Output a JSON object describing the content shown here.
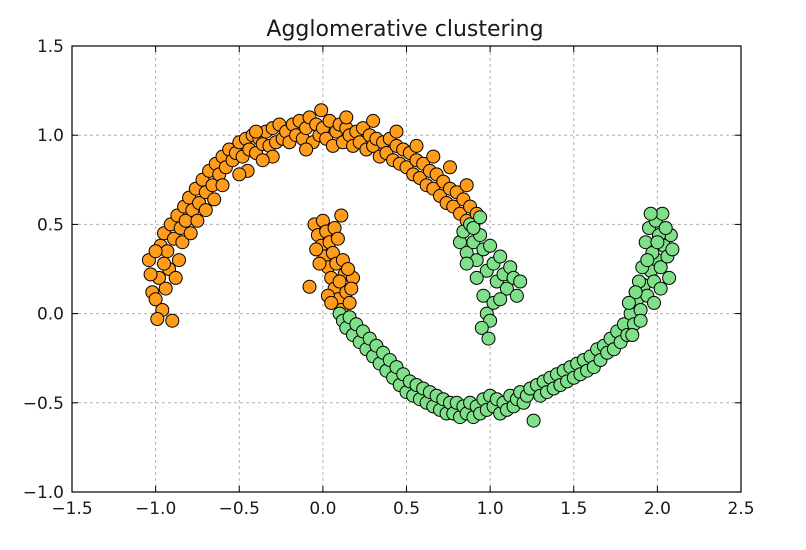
{
  "chart_data": {
    "type": "scatter",
    "title": "Agglomerative clustering",
    "xlabel": "",
    "ylabel": "",
    "xlim": [
      -1.5,
      2.5
    ],
    "ylim": [
      -1.0,
      1.5
    ],
    "xticks": [
      -1.5,
      -1.0,
      -0.5,
      0.0,
      0.5,
      1.0,
      1.5,
      2.0,
      2.5
    ],
    "xtick_labels": [
      "−1.5",
      "−1.0",
      "−0.5",
      "0.0",
      "0.5",
      "1.0",
      "1.5",
      "2.0",
      "2.5"
    ],
    "yticks": [
      -1.0,
      -0.5,
      0.0,
      0.5,
      1.0,
      1.5
    ],
    "ytick_labels": [
      "−1.0",
      "−0.5",
      "0.0",
      "0.5",
      "1.0",
      "1.5"
    ],
    "grid": true,
    "legend": "none",
    "series": [
      {
        "color": "#ff9c1c",
        "points": [
          [
            -1.02,
            0.12
          ],
          [
            -1.0,
            0.08
          ],
          [
            -0.98,
            0.2
          ],
          [
            -1.04,
            0.3
          ],
          [
            -0.96,
            0.02
          ],
          [
            -0.94,
            0.14
          ],
          [
            -0.99,
            -0.03
          ],
          [
            -0.92,
            0.25
          ],
          [
            -0.9,
            -0.04
          ],
          [
            -1.03,
            0.22
          ],
          [
            -0.97,
            0.38
          ],
          [
            -0.95,
            0.45
          ],
          [
            -0.93,
            0.35
          ],
          [
            -0.91,
            0.5
          ],
          [
            -0.89,
            0.42
          ],
          [
            -0.87,
            0.55
          ],
          [
            -0.85,
            0.48
          ],
          [
            -0.83,
            0.6
          ],
          [
            -0.86,
            0.3
          ],
          [
            -0.88,
            0.2
          ],
          [
            -0.84,
            0.4
          ],
          [
            -0.82,
            0.52
          ],
          [
            -0.8,
            0.65
          ],
          [
            -0.78,
            0.58
          ],
          [
            -0.76,
            0.7
          ],
          [
            -0.74,
            0.62
          ],
          [
            -0.72,
            0.75
          ],
          [
            -0.7,
            0.68
          ],
          [
            -0.75,
            0.52
          ],
          [
            -0.79,
            0.45
          ],
          [
            -0.68,
            0.8
          ],
          [
            -0.66,
            0.72
          ],
          [
            -0.64,
            0.84
          ],
          [
            -0.62,
            0.78
          ],
          [
            -0.6,
            0.88
          ],
          [
            -0.58,
            0.82
          ],
          [
            -0.56,
            0.92
          ],
          [
            -0.54,
            0.86
          ],
          [
            -0.6,
            0.72
          ],
          [
            -0.65,
            0.64
          ],
          [
            -0.52,
            0.9
          ],
          [
            -0.5,
            0.96
          ],
          [
            -0.48,
            0.88
          ],
          [
            -0.46,
            0.98
          ],
          [
            -0.44,
            0.92
          ],
          [
            -0.42,
            1.0
          ],
          [
            -0.4,
            0.9
          ],
          [
            -0.38,
            0.98
          ],
          [
            -0.45,
            0.8
          ],
          [
            -0.5,
            0.78
          ],
          [
            -0.36,
            0.95
          ],
          [
            -0.34,
            1.02
          ],
          [
            -0.32,
            0.94
          ],
          [
            -0.3,
            1.04
          ],
          [
            -0.28,
            0.96
          ],
          [
            -0.26,
            1.06
          ],
          [
            -0.24,
            0.98
          ],
          [
            -0.22,
            1.02
          ],
          [
            -0.3,
            0.88
          ],
          [
            -0.36,
            0.86
          ],
          [
            -0.2,
            0.96
          ],
          [
            -0.18,
            1.06
          ],
          [
            -0.16,
            1.0
          ],
          [
            -0.14,
            1.08
          ],
          [
            -0.12,
            0.98
          ],
          [
            -0.1,
            1.04
          ],
          [
            -0.08,
            1.1
          ],
          [
            -0.06,
            0.96
          ],
          [
            -0.04,
            1.06
          ],
          [
            -0.02,
            1.0
          ],
          [
            -0.01,
            1.14
          ],
          [
            0.0,
            1.04
          ],
          [
            0.02,
            0.98
          ],
          [
            0.04,
            1.08
          ],
          [
            0.06,
            0.94
          ],
          [
            0.08,
            1.02
          ],
          [
            0.1,
            1.06
          ],
          [
            0.12,
            0.96
          ],
          [
            0.14,
            1.04
          ],
          [
            0.16,
            1.0
          ],
          [
            0.18,
            0.94
          ],
          [
            0.2,
            1.02
          ],
          [
            0.22,
            0.96
          ],
          [
            0.24,
            1.04
          ],
          [
            0.26,
            0.92
          ],
          [
            0.28,
            1.0
          ],
          [
            0.3,
            0.94
          ],
          [
            0.32,
            0.98
          ],
          [
            0.34,
            0.88
          ],
          [
            0.36,
            0.96
          ],
          [
            0.38,
            0.9
          ],
          [
            0.4,
            0.98
          ],
          [
            0.42,
            0.86
          ],
          [
            0.44,
            0.94
          ],
          [
            0.46,
            0.84
          ],
          [
            0.48,
            0.92
          ],
          [
            0.5,
            0.82
          ],
          [
            0.52,
            0.9
          ],
          [
            0.54,
            0.78
          ],
          [
            0.56,
            0.86
          ],
          [
            0.58,
            0.76
          ],
          [
            0.6,
            0.84
          ],
          [
            0.62,
            0.72
          ],
          [
            0.64,
            0.8
          ],
          [
            0.66,
            0.7
          ],
          [
            0.68,
            0.78
          ],
          [
            0.7,
            0.66
          ],
          [
            0.72,
            0.74
          ],
          [
            0.74,
            0.62
          ],
          [
            0.76,
            0.7
          ],
          [
            0.78,
            0.6
          ],
          [
            0.8,
            0.68
          ],
          [
            0.82,
            0.56
          ],
          [
            0.84,
            0.64
          ],
          [
            0.86,
            0.52
          ],
          [
            0.88,
            0.6
          ],
          [
            0.9,
            0.5
          ],
          [
            0.92,
            0.56
          ],
          [
            0.86,
            0.72
          ],
          [
            0.76,
            0.82
          ],
          [
            0.66,
            0.88
          ],
          [
            0.56,
            0.94
          ],
          [
            0.44,
            1.02
          ],
          [
            0.3,
            1.08
          ],
          [
            0.14,
            1.1
          ],
          [
            -0.1,
            0.92
          ],
          [
            -0.4,
            1.02
          ],
          [
            -0.7,
            0.58
          ],
          [
            -0.95,
            0.28
          ],
          [
            -1.0,
            0.35
          ],
          [
            -0.05,
            0.5
          ],
          [
            -0.03,
            0.44
          ],
          [
            -0.01,
            0.38
          ],
          [
            0.01,
            0.32
          ],
          [
            0.03,
            0.26
          ],
          [
            0.05,
            0.2
          ],
          [
            0.07,
            0.14
          ],
          [
            0.09,
            0.08
          ],
          [
            0.11,
            0.02
          ],
          [
            0.13,
            0.22
          ],
          [
            0.0,
            0.52
          ],
          [
            0.02,
            0.46
          ],
          [
            0.04,
            0.4
          ],
          [
            0.06,
            0.34
          ],
          [
            0.08,
            0.28
          ],
          [
            0.1,
            0.18
          ],
          [
            0.12,
            0.3
          ],
          [
            0.14,
            0.12
          ],
          [
            0.16,
            0.06
          ],
          [
            0.18,
            0.2
          ],
          [
            0.11,
            0.55
          ],
          [
            0.07,
            0.48
          ],
          [
            -0.02,
            0.28
          ],
          [
            -0.08,
            0.15
          ],
          [
            0.15,
            0.25
          ],
          [
            0.09,
            0.42
          ],
          [
            -0.04,
            0.36
          ],
          [
            0.03,
            0.1
          ],
          [
            0.17,
            0.14
          ],
          [
            0.05,
            0.06
          ]
        ]
      },
      {
        "color": "#7fe08a",
        "points": [
          [
            0.1,
            0.0
          ],
          [
            0.12,
            -0.04
          ],
          [
            0.14,
            -0.08
          ],
          [
            0.16,
            -0.02
          ],
          [
            0.18,
            -0.12
          ],
          [
            0.2,
            -0.06
          ],
          [
            0.22,
            -0.16
          ],
          [
            0.24,
            -0.1
          ],
          [
            0.26,
            -0.2
          ],
          [
            0.28,
            -0.14
          ],
          [
            0.3,
            -0.24
          ],
          [
            0.32,
            -0.18
          ],
          [
            0.34,
            -0.28
          ],
          [
            0.36,
            -0.22
          ],
          [
            0.38,
            -0.32
          ],
          [
            0.4,
            -0.26
          ],
          [
            0.42,
            -0.36
          ],
          [
            0.44,
            -0.3
          ],
          [
            0.46,
            -0.4
          ],
          [
            0.48,
            -0.34
          ],
          [
            0.5,
            -0.44
          ],
          [
            0.52,
            -0.38
          ],
          [
            0.54,
            -0.46
          ],
          [
            0.56,
            -0.4
          ],
          [
            0.58,
            -0.48
          ],
          [
            0.6,
            -0.42
          ],
          [
            0.62,
            -0.5
          ],
          [
            0.64,
            -0.44
          ],
          [
            0.66,
            -0.52
          ],
          [
            0.68,
            -0.46
          ],
          [
            0.7,
            -0.54
          ],
          [
            0.72,
            -0.48
          ],
          [
            0.74,
            -0.56
          ],
          [
            0.76,
            -0.5
          ],
          [
            0.78,
            -0.56
          ],
          [
            0.8,
            -0.5
          ],
          [
            0.82,
            -0.58
          ],
          [
            0.84,
            -0.52
          ],
          [
            0.86,
            -0.56
          ],
          [
            0.88,
            -0.5
          ],
          [
            0.9,
            -0.58
          ],
          [
            0.92,
            -0.52
          ],
          [
            0.94,
            -0.56
          ],
          [
            0.96,
            -0.48
          ],
          [
            0.98,
            -0.54
          ],
          [
            1.0,
            -0.46
          ],
          [
            1.02,
            -0.52
          ],
          [
            1.04,
            -0.48
          ],
          [
            1.06,
            -0.56
          ],
          [
            1.08,
            -0.5
          ],
          [
            1.1,
            -0.54
          ],
          [
            1.12,
            -0.46
          ],
          [
            1.14,
            -0.52
          ],
          [
            1.16,
            -0.48
          ],
          [
            1.18,
            -0.44
          ],
          [
            1.2,
            -0.5
          ],
          [
            1.22,
            -0.46
          ],
          [
            1.24,
            -0.42
          ],
          [
            1.26,
            -0.6
          ],
          [
            1.28,
            -0.4
          ],
          [
            1.3,
            -0.46
          ],
          [
            1.32,
            -0.38
          ],
          [
            1.34,
            -0.44
          ],
          [
            1.36,
            -0.36
          ],
          [
            1.38,
            -0.42
          ],
          [
            1.4,
            -0.34
          ],
          [
            1.42,
            -0.4
          ],
          [
            1.44,
            -0.32
          ],
          [
            1.46,
            -0.38
          ],
          [
            1.48,
            -0.3
          ],
          [
            1.5,
            -0.36
          ],
          [
            1.52,
            -0.28
          ],
          [
            1.54,
            -0.34
          ],
          [
            1.56,
            -0.26
          ],
          [
            1.58,
            -0.32
          ],
          [
            1.6,
            -0.24
          ],
          [
            1.62,
            -0.3
          ],
          [
            1.64,
            -0.2
          ],
          [
            1.66,
            -0.26
          ],
          [
            1.68,
            -0.18
          ],
          [
            1.7,
            -0.22
          ],
          [
            1.72,
            -0.14
          ],
          [
            1.74,
            -0.2
          ],
          [
            1.76,
            -0.1
          ],
          [
            1.78,
            -0.16
          ],
          [
            1.8,
            -0.06
          ],
          [
            1.82,
            -0.12
          ],
          [
            1.84,
            0.0
          ],
          [
            1.86,
            -0.06
          ],
          [
            1.88,
            0.08
          ],
          [
            1.9,
            0.02
          ],
          [
            1.92,
            0.16
          ],
          [
            1.94,
            0.1
          ],
          [
            1.96,
            0.24
          ],
          [
            1.98,
            0.18
          ],
          [
            2.0,
            0.3
          ],
          [
            2.02,
            0.26
          ],
          [
            2.04,
            0.38
          ],
          [
            2.06,
            0.32
          ],
          [
            2.08,
            0.44
          ],
          [
            1.93,
            0.4
          ],
          [
            1.95,
            0.48
          ],
          [
            1.97,
            0.34
          ],
          [
            1.99,
            0.52
          ],
          [
            2.01,
            0.44
          ],
          [
            2.03,
            0.56
          ],
          [
            2.05,
            0.48
          ],
          [
            2.07,
            0.2
          ],
          [
            2.09,
            0.36
          ],
          [
            1.91,
            0.26
          ],
          [
            1.89,
            0.18
          ],
          [
            1.87,
            0.12
          ],
          [
            1.85,
            -0.12
          ],
          [
            1.83,
            0.06
          ],
          [
            1.96,
            0.56
          ],
          [
            2.0,
            0.4
          ],
          [
            1.94,
            0.3
          ],
          [
            2.02,
            0.14
          ],
          [
            1.98,
            0.06
          ],
          [
            1.9,
            -0.04
          ],
          [
            0.82,
            0.4
          ],
          [
            0.84,
            0.46
          ],
          [
            0.86,
            0.34
          ],
          [
            0.88,
            0.5
          ],
          [
            0.9,
            0.4
          ],
          [
            0.92,
            0.3
          ],
          [
            0.94,
            0.44
          ],
          [
            0.96,
            0.36
          ],
          [
            0.98,
            0.24
          ],
          [
            1.0,
            0.38
          ],
          [
            1.02,
            0.28
          ],
          [
            1.04,
            0.18
          ],
          [
            1.06,
            0.32
          ],
          [
            1.08,
            0.22
          ],
          [
            1.1,
            0.14
          ],
          [
            1.12,
            0.26
          ],
          [
            1.14,
            0.2
          ],
          [
            1.16,
            0.1
          ],
          [
            0.92,
            0.2
          ],
          [
            0.96,
            0.1
          ],
          [
            0.98,
            0.0
          ],
          [
            1.0,
            -0.04
          ],
          [
            1.02,
            0.06
          ],
          [
            0.95,
            -0.08
          ],
          [
            0.99,
            -0.14
          ],
          [
            1.18,
            0.18
          ],
          [
            0.86,
            0.28
          ],
          [
            0.9,
            0.48
          ],
          [
            0.94,
            0.54
          ],
          [
            1.06,
            0.08
          ]
        ]
      }
    ]
  }
}
